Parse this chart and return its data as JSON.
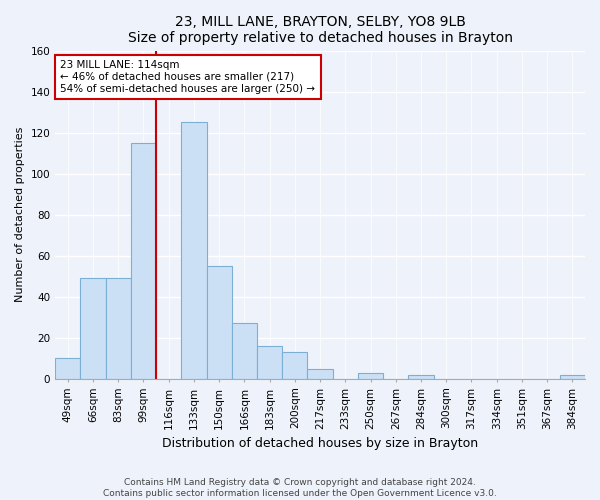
{
  "title": "23, MILL LANE, BRAYTON, SELBY, YO8 9LB",
  "subtitle": "Size of property relative to detached houses in Brayton",
  "xlabel": "Distribution of detached houses by size in Brayton",
  "ylabel": "Number of detached properties",
  "bar_labels": [
    "49sqm",
    "66sqm",
    "83sqm",
    "99sqm",
    "116sqm",
    "133sqm",
    "150sqm",
    "166sqm",
    "183sqm",
    "200sqm",
    "217sqm",
    "233sqm",
    "250sqm",
    "267sqm",
    "284sqm",
    "300sqm",
    "317sqm",
    "334sqm",
    "351sqm",
    "367sqm",
    "384sqm"
  ],
  "bar_values": [
    10,
    49,
    49,
    115,
    0,
    125,
    55,
    27,
    16,
    13,
    5,
    0,
    3,
    0,
    2,
    0,
    0,
    0,
    0,
    0,
    2
  ],
  "bar_color": "#cce0f5",
  "bar_edge_color": "#7bafd4",
  "vline_x_index": 4,
  "vline_color": "#cc0000",
  "annotation_title": "23 MILL LANE: 114sqm",
  "annotation_line1": "← 46% of detached houses are smaller (217)",
  "annotation_line2": "54% of semi-detached houses are larger (250) →",
  "annotation_box_color": "white",
  "annotation_box_edge": "#cc0000",
  "ylim": [
    0,
    160
  ],
  "yticks": [
    0,
    20,
    40,
    60,
    80,
    100,
    120,
    140,
    160
  ],
  "footer_line1": "Contains HM Land Registry data © Crown copyright and database right 2024.",
  "footer_line2": "Contains public sector information licensed under the Open Government Licence v3.0.",
  "bg_color": "#eef2fa",
  "plot_bg_color": "#eef2fa",
  "grid_color": "#ffffff",
  "title_fontsize": 10,
  "subtitle_fontsize": 9,
  "ylabel_fontsize": 8,
  "xlabel_fontsize": 9,
  "tick_fontsize": 7.5,
  "footer_fontsize": 6.5
}
